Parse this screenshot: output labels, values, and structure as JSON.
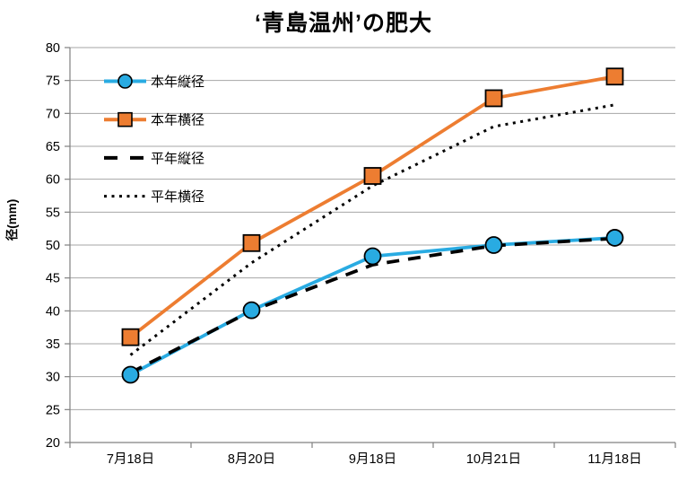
{
  "chart_data": {
    "type": "line",
    "title": "‘青島温州’の肥大",
    "ylabel": "径(mm)",
    "xlabel": "",
    "ylim": [
      20,
      80
    ],
    "ytick_step": 5,
    "grid": "horizontal",
    "legend_position": "upper-left-inside",
    "categories": [
      "7月18日",
      "8月20日",
      "9月18日",
      "10月21日",
      "11月18日"
    ],
    "series": [
      {
        "name": "本年縦径",
        "values": [
          30.3,
          40.1,
          48.3,
          50.0,
          51.1
        ],
        "color": "#29ABE2",
        "marker": "circle",
        "line": "solid"
      },
      {
        "name": "本年横径",
        "values": [
          36.0,
          50.3,
          60.5,
          72.3,
          75.6
        ],
        "color": "#ED7D31",
        "marker": "square",
        "line": "solid"
      },
      {
        "name": "平年縦径",
        "values": [
          30.6,
          40.0,
          47.0,
          49.9,
          51.0
        ],
        "color": "#000000",
        "marker": "none",
        "line": "dashed"
      },
      {
        "name": "平年横径",
        "values": [
          33.3,
          47.3,
          59.0,
          68.0,
          71.3
        ],
        "color": "#000000",
        "marker": "none",
        "line": "dotted"
      }
    ],
    "colors": {
      "axis": "#808080",
      "gridline": "#A6A6A6",
      "text": "#000000"
    }
  }
}
